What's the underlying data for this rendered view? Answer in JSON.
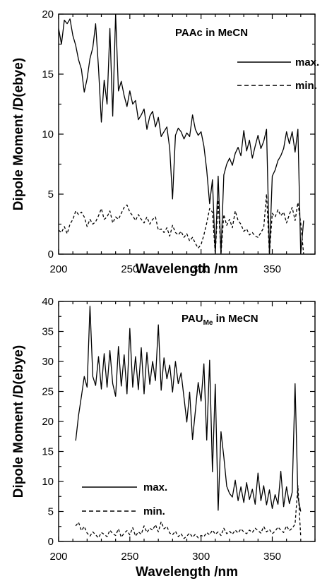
{
  "chart_data": [
    {
      "type": "line",
      "title": "PAAc in MeCN",
      "xlabel": "Wavelength /nm",
      "ylabel": "Dipole Moment /D(ebye)",
      "xlim": [
        200,
        380
      ],
      "ylim": [
        0,
        20
      ],
      "xticks": [
        200,
        250,
        300,
        350
      ],
      "yticks": [
        0,
        5,
        10,
        15,
        20
      ],
      "legend_position": "top-right",
      "series": [
        {
          "name": "max.",
          "style": "solid",
          "x": [
            200,
            202,
            204,
            206,
            208,
            210,
            212,
            214,
            216,
            218,
            220,
            222,
            224,
            226,
            228,
            230,
            232,
            234,
            236,
            238,
            240,
            242,
            244,
            246,
            248,
            250,
            252,
            254,
            256,
            258,
            260,
            262,
            264,
            266,
            268,
            270,
            272,
            274,
            276,
            278,
            280,
            282,
            284,
            286,
            288,
            290,
            292,
            294,
            296,
            298,
            300,
            302,
            304,
            306,
            308,
            310,
            312,
            314,
            316,
            318,
            320,
            322,
            324,
            326,
            328,
            330,
            332,
            334,
            336,
            338,
            340,
            342,
            344,
            346,
            348,
            350,
            352,
            354,
            356,
            358,
            360,
            362,
            364,
            366,
            368,
            370,
            372
          ],
          "values": [
            18.8,
            17.5,
            19.5,
            19.2,
            19.6,
            18.2,
            17.4,
            16.2,
            15.4,
            13.5,
            14.6,
            16.3,
            17.2,
            19.2,
            15.5,
            11,
            14.5,
            12.5,
            18.8,
            11.5,
            20,
            13.6,
            14.4,
            13.2,
            12.3,
            13.6,
            12.5,
            12.8,
            11.2,
            11.6,
            12.1,
            10.4,
            11.5,
            11.9,
            10.6,
            11.4,
            9.8,
            10.2,
            10.6,
            8.8,
            4.6,
            9.9,
            10.5,
            10.2,
            9.6,
            10.1,
            9.8,
            11.6,
            10.4,
            9.9,
            10.2,
            9,
            7,
            4.2,
            6.2,
            0,
            6.5,
            0,
            6.6,
            7.5,
            8,
            7.4,
            8.4,
            8.9,
            8.2,
            10.3,
            8.6,
            9.5,
            8,
            9,
            9.9,
            8.8,
            9.4,
            10.4,
            0,
            6.5,
            7,
            7.8,
            8.2,
            8.8,
            10.2,
            9.2,
            10.2,
            8.5,
            10.4,
            0,
            2.8
          ]
        },
        {
          "name": "min.",
          "style": "dashed",
          "x": [
            200,
            202,
            204,
            206,
            208,
            210,
            212,
            214,
            216,
            218,
            220,
            222,
            224,
            226,
            228,
            230,
            232,
            234,
            236,
            238,
            240,
            242,
            244,
            246,
            248,
            250,
            252,
            254,
            256,
            258,
            260,
            262,
            264,
            266,
            268,
            270,
            272,
            274,
            276,
            278,
            280,
            282,
            284,
            286,
            288,
            290,
            292,
            294,
            296,
            298,
            300,
            302,
            304,
            306,
            308,
            310,
            312,
            314,
            316,
            318,
            320,
            322,
            324,
            326,
            328,
            330,
            332,
            334,
            336,
            338,
            340,
            342,
            344,
            346,
            348,
            350,
            352,
            354,
            356,
            358,
            360,
            362,
            364,
            366,
            368,
            370,
            372
          ],
          "values": [
            2,
            1.8,
            2.3,
            1.7,
            2.5,
            2.9,
            3.6,
            3.3,
            3.5,
            3.1,
            2.3,
            2.9,
            2.5,
            2.7,
            3.2,
            3.8,
            2.9,
            3.1,
            3.6,
            2.6,
            3.1,
            2.9,
            3.4,
            3.9,
            4.1,
            3.5,
            3.2,
            2.8,
            3.3,
            2.9,
            2.6,
            3.1,
            2.5,
            2.9,
            3.1,
            2,
            2.1,
            1.8,
            2.2,
            1.5,
            2.4,
            1.8,
            1.6,
            1.9,
            1.4,
            1.7,
            1.1,
            1.4,
            0.9,
            0.5,
            0.8,
            1.6,
            2.6,
            3.8,
            3.5,
            0,
            4.5,
            0,
            3.3,
            2.4,
            2.9,
            2.2,
            3.6,
            2.8,
            2.5,
            1.9,
            2.1,
            1.6,
            1.8,
            1.5,
            1.4,
            1.8,
            2.2,
            5,
            0,
            3.4,
            3.1,
            3.7,
            3.2,
            3.5,
            2.6,
            3.3,
            3.9,
            2.8,
            4.3,
            2.6,
            0
          ]
        }
      ]
    },
    {
      "type": "line",
      "title": "PAU",
      "title_subscript": "Me",
      "title_suffix": " in MeCN",
      "xlabel": "Wavelength /nm",
      "ylabel": "Dipole Moment /D(ebye)",
      "xlim": [
        200,
        380
      ],
      "ylim": [
        0,
        40
      ],
      "xticks": [
        200,
        250,
        300,
        350
      ],
      "yticks": [
        0,
        5,
        10,
        15,
        20,
        25,
        30,
        35,
        40
      ],
      "legend_position": "bottom-left",
      "series": [
        {
          "name": "max.",
          "style": "solid",
          "x": [
            212,
            214,
            216,
            218,
            220,
            222,
            224,
            226,
            228,
            230,
            232,
            234,
            236,
            238,
            240,
            242,
            244,
            246,
            248,
            250,
            252,
            254,
            256,
            258,
            260,
            262,
            264,
            266,
            268,
            270,
            272,
            274,
            276,
            278,
            280,
            282,
            284,
            286,
            288,
            290,
            292,
            294,
            296,
            298,
            300,
            302,
            304,
            306,
            308,
            310,
            312,
            314,
            316,
            318,
            320,
            322,
            324,
            326,
            328,
            330,
            332,
            334,
            336,
            338,
            340,
            342,
            344,
            346,
            348,
            350,
            352,
            354,
            356,
            358,
            360,
            362,
            364,
            366,
            368,
            370
          ],
          "values": [
            16.8,
            21,
            24.2,
            27.5,
            25.7,
            39.2,
            27.5,
            26,
            30.8,
            25.4,
            31.3,
            25.7,
            31.8,
            26.3,
            24.2,
            32.5,
            25.9,
            31.1,
            24.6,
            35.5,
            25.7,
            30.8,
            25.3,
            32.3,
            24.6,
            31.5,
            26.2,
            30,
            26.8,
            36.1,
            25.2,
            30.6,
            27.1,
            29.4,
            24.9,
            30,
            26.3,
            28.1,
            24,
            19.9,
            24.9,
            17,
            21.7,
            26.5,
            23.4,
            29.6,
            16.9,
            30.2,
            11.6,
            26.2,
            5.2,
            18.3,
            14.1,
            9.2,
            8,
            7.4,
            10.2,
            6.8,
            9.1,
            6.5,
            9.8,
            7,
            8.7,
            6.2,
            11.4,
            6.8,
            9.3,
            6.1,
            8.6,
            5.5,
            7.8,
            6.2,
            11.7,
            5.8,
            9.1,
            6.3,
            8.2,
            26.3,
            7.4,
            5
          ]
        },
        {
          "name": "min.",
          "style": "dashed",
          "x": [
            212,
            214,
            216,
            218,
            220,
            222,
            224,
            226,
            228,
            230,
            232,
            234,
            236,
            238,
            240,
            242,
            244,
            246,
            248,
            250,
            252,
            254,
            256,
            258,
            260,
            262,
            264,
            266,
            268,
            270,
            272,
            274,
            276,
            278,
            280,
            282,
            284,
            286,
            288,
            290,
            292,
            294,
            296,
            298,
            300,
            302,
            304,
            306,
            308,
            310,
            312,
            314,
            316,
            318,
            320,
            322,
            324,
            326,
            328,
            330,
            332,
            334,
            336,
            338,
            340,
            342,
            344,
            346,
            348,
            350,
            352,
            354,
            356,
            358,
            360,
            362,
            364,
            366,
            368,
            370
          ],
          "values": [
            2.6,
            3.2,
            1.8,
            2.5,
            1.4,
            0.9,
            1.6,
            1.1,
            0.6,
            1.5,
            1.2,
            0.8,
            1.9,
            1.3,
            1,
            2.1,
            0.7,
            1.4,
            1.8,
            1.1,
            2.3,
            0.9,
            1.6,
            1.2,
            2.6,
            1.5,
            2.2,
            1.9,
            2.8,
            1.6,
            3.3,
            2.1,
            2.5,
            1.4,
            1.1,
            1.7,
            0.8,
            1.3,
            0.5,
            0.9,
            1.4,
            0.7,
            1.2,
            0.6,
            1,
            0.8,
            1.5,
            1.1,
            1.9,
            1.2,
            1.6,
            1,
            2.2,
            1.3,
            1.7,
            1.2,
            1.9,
            1.4,
            2.1,
            1.6,
            1.3,
            1.9,
            1.5,
            2.2,
            1.8,
            1.4,
            2.5,
            1.6,
            2,
            1.3,
            1.7,
            2.4,
            1.9,
            1.5,
            2.6,
            1.8,
            2.2,
            2.9,
            9.3,
            0.8
          ]
        }
      ]
    }
  ]
}
